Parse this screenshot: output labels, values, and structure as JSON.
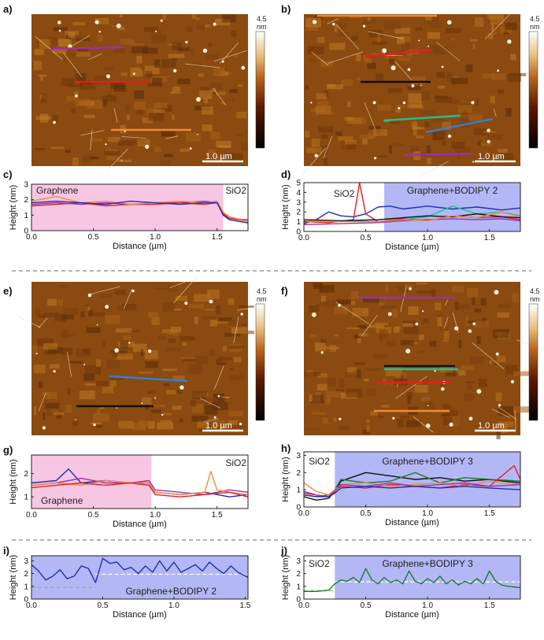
{
  "afm_panels": [
    {
      "label": "a)",
      "colorbar": {
        "max": "4.5",
        "unit": "nm"
      },
      "scale_bar": "1.0 µm",
      "lines": [
        {
          "color": "#9b2fae"
        },
        {
          "color": "#e02020"
        },
        {
          "color": "#f08a3c"
        }
      ]
    },
    {
      "label": "b)",
      "colorbar": {
        "max": "4.5",
        "unit": "nm"
      },
      "scale_bar": "1.0 µm",
      "lines": [
        {
          "color": "#f08a3c"
        },
        {
          "color": "#e02020"
        },
        {
          "color": "#111111"
        },
        {
          "color": "#22c08a"
        },
        {
          "color": "#2f7fd8"
        },
        {
          "color": "#9b2fae"
        }
      ]
    },
    {
      "label": "e)",
      "colorbar": {
        "max": "4.5",
        "unit": "nm"
      },
      "scale_bar": "1.0 µm",
      "lines": [
        {
          "color": "#2f7fd8"
        },
        {
          "color": "#111111"
        }
      ]
    },
    {
      "label": "f)",
      "colorbar": {
        "max": "4.5",
        "unit": "nm"
      },
      "scale_bar": "1.0 µm",
      "lines": [
        {
          "color": "#9b2fae"
        },
        {
          "color": "#111111"
        },
        {
          "color": "#22c08a"
        },
        {
          "color": "#e02020"
        },
        {
          "color": "#f08a3c"
        }
      ]
    }
  ],
  "chart_data": [
    {
      "label": "c)",
      "type": "line",
      "xlabel": "Distance (µm)",
      "ylabel": "Height (nm)",
      "xlim": [
        0,
        1.75
      ],
      "ylim": [
        0,
        3
      ],
      "xticks": [
        "0.0",
        "0.5",
        "1.0",
        "1.5"
      ],
      "yticks": [
        "0",
        "1",
        "2",
        "3"
      ],
      "regions": [
        {
          "name": "Graphene",
          "from": 0.0,
          "to": 1.55,
          "color": "#f7c6e3"
        },
        {
          "name": "SiO2",
          "from": 1.55,
          "to": 1.75,
          "color": "#ffffff"
        }
      ],
      "series": [
        {
          "name": "purple",
          "color": "#9b2fae",
          "x": [
            0,
            0.2,
            0.4,
            0.6,
            0.8,
            1.0,
            1.2,
            1.4,
            1.5,
            1.55,
            1.6,
            1.75
          ],
          "y": [
            1.7,
            1.8,
            1.7,
            1.8,
            1.7,
            1.8,
            1.8,
            1.9,
            1.8,
            1.0,
            0.8,
            0.7
          ]
        },
        {
          "name": "red",
          "color": "#e02020",
          "x": [
            0,
            0.2,
            0.4,
            0.6,
            0.8,
            1.0,
            1.2,
            1.4,
            1.5,
            1.55,
            1.6,
            1.75
          ],
          "y": [
            1.6,
            1.7,
            1.8,
            1.6,
            1.7,
            1.7,
            1.8,
            1.7,
            1.8,
            1.1,
            0.8,
            0.6
          ]
        },
        {
          "name": "orange",
          "color": "#f08a3c",
          "x": [
            0,
            0.2,
            0.4,
            0.6,
            0.8,
            1.0,
            1.2,
            1.4,
            1.5,
            1.55,
            1.6,
            1.75
          ],
          "y": [
            1.9,
            2.2,
            1.8,
            1.9,
            1.7,
            1.8,
            1.9,
            1.8,
            1.9,
            1.2,
            0.9,
            0.6
          ]
        },
        {
          "name": "blue",
          "color": "#1f2fb0",
          "x": [
            0,
            0.2,
            0.4,
            0.6,
            0.8,
            1.0,
            1.2,
            1.4,
            1.5,
            1.55,
            1.6,
            1.75
          ],
          "y": [
            1.8,
            1.9,
            1.8,
            1.7,
            1.9,
            1.8,
            1.7,
            1.8,
            1.8,
            1.0,
            0.7,
            0.5
          ]
        }
      ]
    },
    {
      "label": "d)",
      "type": "line",
      "xlabel": "Distance (µm)",
      "ylabel": "Height (nm)",
      "xlim": [
        0,
        1.75
      ],
      "ylim": [
        0,
        5
      ],
      "xticks": [
        "0.0",
        "0.5",
        "1.0",
        "1.5"
      ],
      "yticks": [
        "0",
        "1",
        "2",
        "3",
        "4",
        "5"
      ],
      "regions": [
        {
          "name": "SiO2",
          "from": 0.0,
          "to": 0.65,
          "color": "#ffffff"
        },
        {
          "name": "Graphene+BODIPY 2",
          "from": 0.65,
          "to": 1.75,
          "color": "#b3b7f5"
        }
      ],
      "series": [
        {
          "name": "blue",
          "color": "#1f2fb0",
          "x": [
            0,
            0.1,
            0.2,
            0.3,
            0.4,
            0.5,
            0.6,
            0.7,
            0.8,
            1.0,
            1.2,
            1.4,
            1.6,
            1.75
          ],
          "y": [
            0.8,
            1.2,
            2.0,
            1.6,
            1.5,
            1.8,
            2.5,
            2.6,
            2.3,
            2.6,
            2.3,
            2.5,
            2.2,
            2.4
          ]
        },
        {
          "name": "red",
          "color": "#e02020",
          "x": [
            0,
            0.2,
            0.4,
            0.45,
            0.5,
            0.6,
            0.8,
            1.0,
            1.2,
            1.4,
            1.6,
            1.75
          ],
          "y": [
            1.0,
            0.9,
            1.2,
            5.0,
            1.8,
            1.0,
            1.3,
            1.1,
            1.6,
            1.4,
            1.5,
            1.2
          ]
        },
        {
          "name": "green",
          "color": "#22c08a",
          "x": [
            0,
            0.3,
            0.6,
            0.8,
            1.0,
            1.2,
            1.4,
            1.6,
            1.75
          ],
          "y": [
            1.0,
            1.1,
            1.0,
            1.2,
            1.5,
            2.6,
            1.8,
            2.0,
            1.6
          ]
        },
        {
          "name": "black",
          "color": "#111111",
          "x": [
            0,
            0.3,
            0.6,
            0.8,
            1.0,
            1.2,
            1.4,
            1.6,
            1.75
          ],
          "y": [
            1.2,
            1.1,
            1.2,
            1.4,
            1.6,
            1.5,
            1.8,
            1.5,
            1.4
          ]
        },
        {
          "name": "purple",
          "color": "#9b2fae",
          "x": [
            0,
            0.3,
            0.6,
            0.8,
            1.0,
            1.2,
            1.4,
            1.6,
            1.75
          ],
          "y": [
            0.7,
            0.8,
            0.9,
            1.1,
            1.2,
            1.3,
            1.2,
            1.3,
            1.1
          ]
        },
        {
          "name": "orange",
          "color": "#f08a3c",
          "x": [
            0,
            0.3,
            0.6,
            0.8,
            1.0,
            1.2,
            1.4,
            1.6,
            1.75
          ],
          "y": [
            1.1,
            1.0,
            1.0,
            1.2,
            1.1,
            1.6,
            1.4,
            2.0,
            1.5
          ]
        }
      ]
    },
    {
      "label": "g)",
      "type": "line",
      "xlabel": "Distance (µm)",
      "ylabel": "Height (nm)",
      "xlim": [
        0,
        1.75
      ],
      "ylim": [
        0.5,
        2.8
      ],
      "xticks": [
        "0.0",
        "0.5",
        "1.0",
        "1.5"
      ],
      "yticks": [
        "1",
        "2"
      ],
      "regions": [
        {
          "name": "Graphene",
          "from": 0.0,
          "to": 0.97,
          "color": "#f7c6e3"
        },
        {
          "name": "SiO2",
          "from": 0.97,
          "to": 1.75,
          "color": "#ffffff"
        }
      ],
      "series": [
        {
          "name": "blue",
          "color": "#1f2fb0",
          "x": [
            0,
            0.2,
            0.3,
            0.4,
            0.6,
            0.8,
            0.95,
            1.0,
            1.2,
            1.4,
            1.6,
            1.75
          ],
          "y": [
            1.6,
            1.7,
            2.2,
            1.6,
            1.7,
            1.6,
            1.6,
            1.2,
            1.1,
            1.2,
            1.0,
            1.1
          ]
        },
        {
          "name": "purple",
          "color": "#9b2fae",
          "x": [
            0,
            0.2,
            0.4,
            0.6,
            0.8,
            0.95,
            1.0,
            1.2,
            1.4,
            1.6,
            1.75
          ],
          "y": [
            1.5,
            1.6,
            1.8,
            1.6,
            1.6,
            1.7,
            1.3,
            1.2,
            1.1,
            1.3,
            1.2
          ]
        },
        {
          "name": "orange",
          "color": "#f08a3c",
          "x": [
            0,
            0.2,
            0.4,
            0.6,
            0.8,
            0.95,
            1.0,
            1.2,
            1.4,
            1.45,
            1.5,
            1.6,
            1.75
          ],
          "y": [
            1.5,
            1.6,
            1.5,
            1.7,
            1.6,
            1.6,
            1.2,
            1.1,
            1.2,
            2.1,
            1.3,
            1.2,
            1.1
          ]
        },
        {
          "name": "red",
          "color": "#e02020",
          "x": [
            0,
            0.2,
            0.4,
            0.6,
            0.8,
            0.95,
            1.0,
            1.2,
            1.4,
            1.6,
            1.75
          ],
          "y": [
            1.4,
            1.5,
            1.6,
            1.5,
            1.6,
            1.5,
            1.1,
            1.0,
            1.1,
            1.2,
            1.0
          ]
        }
      ]
    },
    {
      "label": "h)",
      "type": "line",
      "xlabel": "Distance (µm)",
      "ylabel": "Height (nm)",
      "xlim": [
        0,
        1.75
      ],
      "ylim": [
        0,
        3.2
      ],
      "xticks": [
        "0.0",
        "0.5",
        "1.0",
        "1.5"
      ],
      "yticks": [
        "0",
        "1",
        "2",
        "3"
      ],
      "regions": [
        {
          "name": "SiO2",
          "from": 0.0,
          "to": 0.25,
          "color": "#ffffff"
        },
        {
          "name": "Graphene+BODIPY 3",
          "from": 0.25,
          "to": 1.75,
          "color": "#b3b7f5"
        }
      ],
      "series": [
        {
          "name": "black",
          "color": "#111111",
          "x": [
            0,
            0.1,
            0.2,
            0.25,
            0.3,
            0.5,
            0.7,
            0.9,
            1.1,
            1.3,
            1.5,
            1.75
          ],
          "y": [
            0.6,
            0.4,
            0.5,
            0.9,
            1.5,
            2.0,
            1.8,
            1.6,
            1.7,
            1.5,
            1.6,
            1.4
          ]
        },
        {
          "name": "green",
          "color": "#1f7a2a",
          "x": [
            0,
            0.1,
            0.2,
            0.25,
            0.3,
            0.5,
            0.7,
            0.9,
            1.1,
            1.3,
            1.5,
            1.75
          ],
          "y": [
            0.7,
            0.6,
            0.7,
            1.0,
            1.6,
            1.4,
            1.5,
            2.0,
            1.4,
            1.7,
            1.6,
            1.5
          ]
        },
        {
          "name": "red",
          "color": "#e02020",
          "x": [
            0,
            0.1,
            0.2,
            0.25,
            0.3,
            0.5,
            0.7,
            0.9,
            1.1,
            1.3,
            1.5,
            1.7,
            1.75
          ],
          "y": [
            0.9,
            0.7,
            0.6,
            1.0,
            1.2,
            1.1,
            1.3,
            1.2,
            1.1,
            1.3,
            1.2,
            2.4,
            1.6
          ]
        },
        {
          "name": "orange",
          "color": "#f08a3c",
          "x": [
            0,
            0.1,
            0.2,
            0.25,
            0.3,
            0.5,
            0.7,
            0.9,
            1.1,
            1.3,
            1.5,
            1.75
          ],
          "y": [
            1.4,
            0.9,
            0.7,
            1.0,
            1.3,
            1.4,
            1.2,
            1.3,
            1.4,
            1.2,
            1.5,
            1.3
          ]
        },
        {
          "name": "purple",
          "color": "#9b2fae",
          "x": [
            0,
            0.1,
            0.2,
            0.25,
            0.3,
            0.5,
            0.7,
            0.9,
            1.1,
            1.3,
            1.5,
            1.75
          ],
          "y": [
            0.8,
            0.7,
            0.6,
            0.9,
            1.3,
            1.2,
            1.4,
            1.2,
            1.3,
            1.4,
            1.2,
            1.3
          ]
        },
        {
          "name": "blue",
          "color": "#1f2fb0",
          "x": [
            0,
            0.1,
            0.2,
            0.25,
            0.3,
            0.5,
            0.7,
            0.9,
            1.1,
            1.3,
            1.5,
            1.75
          ],
          "y": [
            0.7,
            0.6,
            0.6,
            0.8,
            1.1,
            1.2,
            1.1,
            1.2,
            1.1,
            1.2,
            1.1,
            1.0
          ]
        }
      ]
    },
    {
      "label": "i)",
      "type": "line",
      "xlabel": "Distance (µm)",
      "ylabel": "Height (nm)",
      "xlim": [
        0,
        1.52
      ],
      "ylim": [
        0,
        3.4
      ],
      "xticks": [
        "0.0",
        "0.5",
        "1.0",
        "1.5"
      ],
      "yticks": [
        "0",
        "1",
        "2",
        "3"
      ],
      "regions": [
        {
          "name": "Graphene+BODIPY 2",
          "from": 0.0,
          "to": 1.52,
          "color": "#b3b7f5"
        }
      ],
      "guides": [
        {
          "y": 0.9,
          "from": 0.0,
          "to": 0.45,
          "color": "#5fd35f"
        },
        {
          "y": 1.95,
          "from": 0.45,
          "to": 1.52,
          "color": "#ffffff"
        }
      ],
      "series": [
        {
          "name": "blue",
          "color": "#1f2fb0",
          "x": [
            0,
            0.05,
            0.1,
            0.15,
            0.2,
            0.25,
            0.3,
            0.35,
            0.4,
            0.45,
            0.5,
            0.55,
            0.6,
            0.65,
            0.7,
            0.75,
            0.8,
            0.85,
            0.9,
            0.95,
            1.0,
            1.05,
            1.1,
            1.15,
            1.2,
            1.25,
            1.3,
            1.35,
            1.4,
            1.45,
            1.52
          ],
          "y": [
            2.7,
            2.2,
            1.5,
            1.8,
            2.3,
            1.6,
            1.8,
            2.6,
            2.4,
            1.3,
            3.2,
            2.8,
            2.9,
            2.3,
            2.5,
            2.0,
            2.6,
            2.1,
            3.0,
            2.2,
            2.9,
            2.1,
            2.4,
            2.7,
            2.2,
            2.9,
            2.4,
            2.0,
            2.6,
            2.1,
            1.7
          ]
        }
      ]
    },
    {
      "label": "j)",
      "type": "line",
      "xlabel": "Distance (µm)",
      "ylabel": "Height (nm)",
      "xlim": [
        0,
        1.75
      ],
      "ylim": [
        0,
        3.4
      ],
      "xticks": [
        "0.0",
        "0.5",
        "1.0",
        "1.5"
      ],
      "yticks": [
        "0",
        "1",
        "2",
        "3"
      ],
      "regions": [
        {
          "name": "SiO2",
          "from": 0.0,
          "to": 0.25,
          "color": "#ffffff"
        },
        {
          "name": "Graphene+BODIPY 3",
          "from": 0.25,
          "to": 1.75,
          "color": "#b3b7f5"
        }
      ],
      "guides": [
        {
          "y": 0.65,
          "from": 0.0,
          "to": 0.25,
          "color": "#5fd35f"
        },
        {
          "y": 1.35,
          "from": 0.25,
          "to": 1.75,
          "color": "#ffffff"
        }
      ],
      "series": [
        {
          "name": "green",
          "color": "#1f7a2a",
          "x": [
            0,
            0.1,
            0.2,
            0.25,
            0.3,
            0.35,
            0.4,
            0.45,
            0.5,
            0.55,
            0.6,
            0.65,
            0.7,
            0.75,
            0.8,
            0.85,
            0.9,
            0.95,
            1.0,
            1.05,
            1.1,
            1.15,
            1.2,
            1.25,
            1.3,
            1.35,
            1.4,
            1.45,
            1.5,
            1.55,
            1.6,
            1.65,
            1.75
          ],
          "y": [
            0.6,
            0.6,
            0.7,
            1.2,
            1.5,
            1.4,
            1.7,
            1.3,
            2.4,
            1.5,
            1.2,
            1.7,
            1.3,
            1.5,
            1.2,
            2.2,
            1.4,
            1.2,
            1.6,
            1.3,
            1.8,
            1.2,
            1.5,
            1.1,
            1.4,
            1.2,
            1.6,
            1.2,
            2.2,
            1.4,
            1.1,
            1.0,
            0.9
          ]
        }
      ]
    }
  ]
}
